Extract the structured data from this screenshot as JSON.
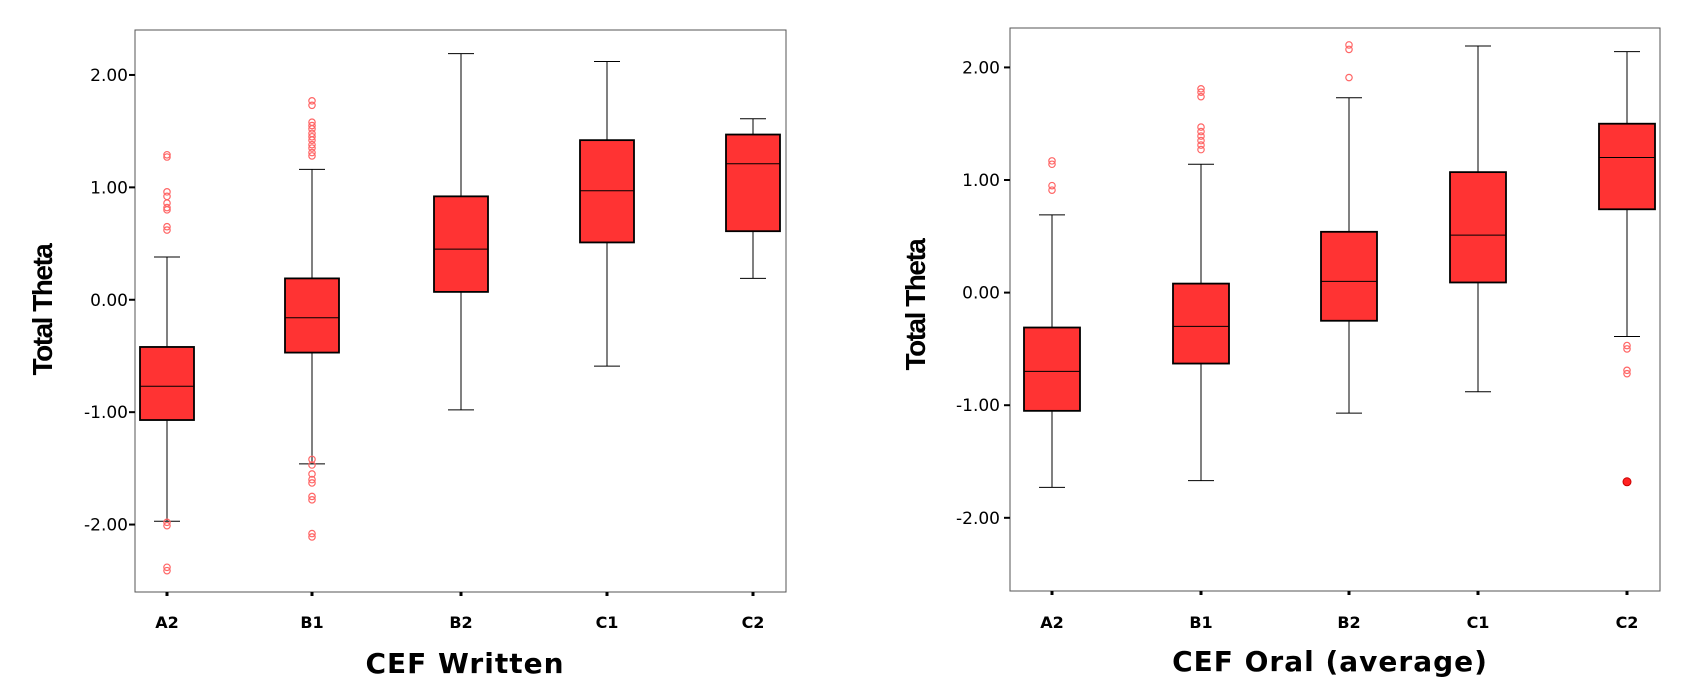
{
  "chart_data": [
    {
      "type": "box",
      "xlabel": "CEF Written",
      "ylabel": "Total Theta",
      "ylim": [
        -2.6,
        2.4
      ],
      "yticks": [
        2.0,
        1.0,
        0.0,
        -1.0,
        -2.0
      ],
      "ytick_labels": [
        "2.00",
        "1.00",
        "0.00",
        "-1.00",
        "-2.00"
      ],
      "categories": [
        "A2",
        "B1",
        "B2",
        "C1",
        "C2"
      ],
      "box_color": "#ff3333",
      "outlier_color": "#ff6666",
      "boxes": [
        {
          "category": "A2",
          "whisker_low": -1.97,
          "q1": -1.07,
          "median": -0.77,
          "q3": -0.42,
          "whisker_high": 0.38,
          "outliers": [
            1.29,
            1.27,
            0.96,
            0.92,
            0.86,
            0.82,
            0.8,
            0.65,
            0.62,
            -1.98,
            -2.01,
            -2.38,
            -2.41
          ],
          "extremes": []
        },
        {
          "category": "B1",
          "whisker_low": -1.46,
          "q1": -0.47,
          "median": -0.16,
          "q3": 0.19,
          "whisker_high": 1.16,
          "outliers": [
            1.77,
            1.73,
            1.58,
            1.55,
            1.52,
            1.48,
            1.45,
            1.42,
            1.38,
            1.35,
            1.31,
            1.28,
            -1.42,
            -1.47,
            -1.55,
            -1.6,
            -1.63,
            -1.75,
            -1.78,
            -2.08,
            -2.11
          ],
          "extremes": []
        },
        {
          "category": "B2",
          "whisker_low": -0.98,
          "q1": 0.07,
          "median": 0.45,
          "q3": 0.92,
          "whisker_high": 2.19,
          "outliers": [],
          "extremes": []
        },
        {
          "category": "C1",
          "whisker_low": -0.59,
          "q1": 0.51,
          "median": 0.97,
          "q3": 1.42,
          "whisker_high": 2.12,
          "outliers": [],
          "extremes": []
        },
        {
          "category": "C2",
          "whisker_low": 0.19,
          "q1": 0.61,
          "median": 1.21,
          "q3": 1.47,
          "whisker_high": 1.61,
          "outliers": [],
          "extremes": []
        }
      ]
    },
    {
      "type": "box",
      "xlabel": "CEF Oral (average)",
      "ylabel": "Total Theta",
      "ylim": [
        -2.65,
        2.35
      ],
      "yticks": [
        2.0,
        1.0,
        0.0,
        -1.0,
        -2.0
      ],
      "ytick_labels": [
        "2.00",
        "1.00",
        "0.00",
        "-1.00",
        "-2.00"
      ],
      "categories": [
        "A2",
        "B1",
        "B2",
        "C1",
        "C2"
      ],
      "box_color": "#ff3333",
      "outlier_color": "#ff6666",
      "boxes": [
        {
          "category": "A2",
          "whisker_low": -1.73,
          "q1": -1.05,
          "median": -0.7,
          "q3": -0.31,
          "whisker_high": 0.69,
          "outliers": [
            1.17,
            1.14,
            0.95,
            0.91
          ],
          "extremes": []
        },
        {
          "category": "B1",
          "whisker_low": -1.67,
          "q1": -0.63,
          "median": -0.3,
          "q3": 0.08,
          "whisker_high": 1.14,
          "outliers": [
            1.81,
            1.78,
            1.74,
            1.47,
            1.43,
            1.39,
            1.35,
            1.31,
            1.27
          ],
          "extremes": []
        },
        {
          "category": "B2",
          "whisker_low": -1.07,
          "q1": -0.25,
          "median": 0.1,
          "q3": 0.54,
          "whisker_high": 1.73,
          "outliers": [
            2.2,
            2.16,
            1.91
          ],
          "extremes": []
        },
        {
          "category": "C1",
          "whisker_low": -0.88,
          "q1": 0.09,
          "median": 0.51,
          "q3": 1.07,
          "whisker_high": 2.19,
          "outliers": [],
          "extremes": []
        },
        {
          "category": "C2",
          "whisker_low": -0.39,
          "q1": 0.74,
          "median": 1.2,
          "q3": 1.5,
          "whisker_high": 2.14,
          "outliers": [
            -0.47,
            -0.5,
            -0.69,
            -0.72
          ],
          "extremes": [
            -1.68
          ]
        }
      ]
    }
  ]
}
